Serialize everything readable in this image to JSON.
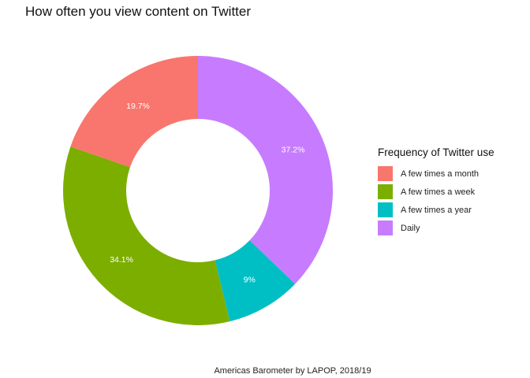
{
  "chart_data": {
    "type": "pie",
    "title": "How often you view content on Twitter",
    "caption": "Americas Barometer by LAPOP, 2018/19",
    "legend_title": "Frequency of Twitter use",
    "legend_position": "right",
    "slices": [
      {
        "label": "Daily",
        "value": 37.2,
        "display": "37.2%",
        "color": "#C77CFF"
      },
      {
        "label": "A few times a year",
        "value": 9.0,
        "display": "9%",
        "color": "#00BFC4"
      },
      {
        "label": "A few times a week",
        "value": 34.1,
        "display": "34.1%",
        "color": "#7CAE00"
      },
      {
        "label": "A few times a month",
        "value": 19.7,
        "display": "19.7%",
        "color": "#F8766D"
      }
    ],
    "legend": [
      {
        "label": "A few times a month",
        "color": "#F8766D"
      },
      {
        "label": "A few times a week",
        "color": "#7CAE00"
      },
      {
        "label": "A few times a year",
        "color": "#00BFC4"
      },
      {
        "label": "Daily",
        "color": "#C77CFF"
      }
    ]
  }
}
